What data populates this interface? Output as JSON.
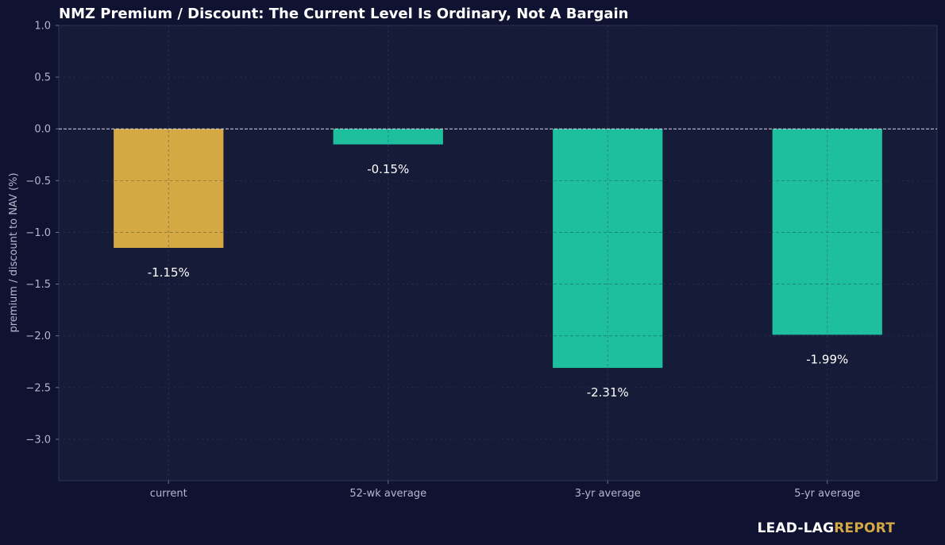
{
  "chart_data": {
    "type": "bar",
    "title": "NMZ Premium / Discount: The Current Level Is Ordinary, Not A Bargain",
    "ylabel": "premium / discount to NAV (%)",
    "xlabel": "",
    "categories": [
      "current",
      "52-wk average",
      "3-yr average",
      "5-yr average"
    ],
    "values": [
      -1.15,
      -0.15,
      -2.31,
      -1.99
    ],
    "value_labels": [
      "-1.15%",
      "-0.15%",
      "-2.31%",
      "-1.99%"
    ],
    "ylim": [
      -3.4,
      1.0
    ],
    "yticks": [
      1.0,
      0.5,
      0.0,
      -0.5,
      -1.0,
      -1.5,
      -2.0,
      -2.5,
      -3.0
    ],
    "ytick_labels": [
      "1.0",
      "0.5",
      "0.0",
      "−0.5",
      "−1.0",
      "−1.5",
      "−2.0",
      "−2.5",
      "−3.0"
    ],
    "grid": true,
    "zero_line": "dashed",
    "colors": {
      "highlight": "#d4a843",
      "bars": "#1dbf9e",
      "background": "#0f1230",
      "plot_background": "#161c38"
    },
    "highlight_index": 0
  },
  "branding": {
    "part1": "LEAD-LAG",
    "part2": "REPORT"
  }
}
